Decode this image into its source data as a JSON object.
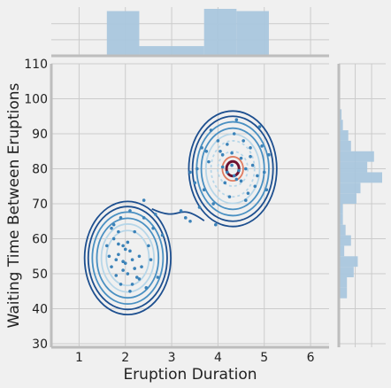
{
  "chart_data": {
    "type": "scatter",
    "xlabel": "Eruption Duration",
    "ylabel": "Waiting Time Between Eruptions",
    "xlim": [
      0.4,
      6.4
    ],
    "ylim": [
      29,
      110
    ],
    "xticks": [
      "1",
      "2",
      "3",
      "4",
      "5",
      "6"
    ],
    "yticks": [
      "30",
      "40",
      "50",
      "60",
      "70",
      "80",
      "90",
      "100",
      "110"
    ],
    "grid": true,
    "colors": {
      "background": "#f0f0f0",
      "grid": "#cbcbcb",
      "spine": "#bdbdbd",
      "points": "#3b82b8",
      "hist": "#a9c6dd",
      "contour_outer": "#1d4f8f",
      "contour_mid": "#4a90c2",
      "contour_inner": "#b7d6e8",
      "contour_hot": "#e07b5f",
      "contour_core": "#6e1230"
    },
    "kde_components": [
      {
        "mx": 2.05,
        "my": 54.5,
        "sx": 0.42,
        "sy": 6.4
      },
      {
        "mx": 4.32,
        "my": 80.0,
        "sx": 0.46,
        "sy": 6.3
      }
    ],
    "kde_levels": [
      {
        "x_radius": 0.95,
        "y_radius": 16.5
      },
      {
        "x_radius": 0.87,
        "y_radius": 15.0
      },
      {
        "x_radius": 0.78,
        "y_radius": 13.4
      },
      {
        "x_radius": 0.68,
        "y_radius": 11.6
      },
      {
        "x_radius": 0.58,
        "y_radius": 9.9
      },
      {
        "x_radius": 0.47,
        "y_radius": 8.0
      },
      {
        "x_radius": 0.36,
        "y_radius": 6.2
      },
      {
        "x_radius": 0.25,
        "y_radius": 4.3
      },
      {
        "x_radius": 0.15,
        "y_radius": 2.6
      }
    ],
    "points": [
      [
        1.8,
        54.0
      ],
      [
        1.95,
        58.0
      ],
      [
        2.05,
        50.0
      ],
      [
        2.15,
        47.0
      ],
      [
        1.7,
        52.0
      ],
      [
        2.3,
        55.0
      ],
      [
        2.1,
        56.5
      ],
      [
        1.9,
        47.0
      ],
      [
        1.75,
        60.0
      ],
      [
        2.4,
        66.0
      ],
      [
        1.85,
        62.0
      ],
      [
        2.2,
        51.5
      ],
      [
        1.65,
        55.0
      ],
      [
        2.0,
        53.0
      ],
      [
        2.5,
        58.0
      ],
      [
        2.25,
        49.0
      ],
      [
        1.95,
        51.0
      ],
      [
        2.1,
        45.0
      ],
      [
        2.35,
        52.0
      ],
      [
        1.6,
        58.0
      ],
      [
        1.75,
        64.0
      ],
      [
        2.6,
        63.0
      ],
      [
        2.8,
        61.0
      ],
      [
        2.7,
        49.0
      ],
      [
        1.85,
        55.5
      ],
      [
        2.05,
        59.0
      ],
      [
        2.2,
        62.0
      ],
      [
        1.9,
        66.0
      ],
      [
        2.45,
        46.0
      ],
      [
        2.0,
        57.0
      ],
      [
        1.95,
        53.5
      ],
      [
        2.15,
        54.0
      ],
      [
        1.8,
        49.5
      ],
      [
        2.3,
        48.5
      ],
      [
        1.7,
        63.0
      ],
      [
        2.55,
        54.0
      ],
      [
        2.4,
        71.0
      ],
      [
        2.65,
        67.0
      ],
      [
        2.1,
        68.0
      ],
      [
        1.85,
        58.5
      ],
      [
        3.5,
        76.0
      ],
      [
        3.4,
        79.0
      ],
      [
        3.8,
        82.0
      ],
      [
        4.0,
        88.0
      ],
      [
        4.1,
        84.0
      ],
      [
        4.2,
        79.0
      ],
      [
        4.3,
        81.0
      ],
      [
        4.4,
        77.0
      ],
      [
        4.5,
        83.0
      ],
      [
        4.6,
        80.0
      ],
      [
        4.7,
        86.0
      ],
      [
        4.8,
        75.0
      ],
      [
        4.9,
        92.0
      ],
      [
        5.0,
        79.0
      ],
      [
        5.1,
        84.0
      ],
      [
        4.25,
        72.0
      ],
      [
        4.35,
        90.0
      ],
      [
        3.9,
        70.0
      ],
      [
        3.7,
        74.0
      ],
      [
        3.6,
        69.0
      ],
      [
        3.3,
        66.0
      ],
      [
        3.2,
        68.0
      ],
      [
        3.4,
        65.0
      ],
      [
        3.95,
        64.0
      ],
      [
        4.45,
        79.5
      ],
      [
        4.15,
        76.0
      ],
      [
        4.55,
        88.0
      ],
      [
        4.65,
        73.0
      ],
      [
        4.05,
        85.0
      ],
      [
        4.75,
        81.0
      ],
      [
        4.85,
        78.0
      ],
      [
        3.85,
        91.0
      ],
      [
        4.4,
        94.0
      ],
      [
        5.05,
        74.0
      ],
      [
        4.2,
        87.0
      ],
      [
        3.75,
        85.0
      ],
      [
        4.3,
        84.5
      ],
      [
        4.5,
        76.5
      ],
      [
        4.1,
        80.5
      ],
      [
        4.6,
        71.0
      ],
      [
        3.55,
        80.0
      ],
      [
        4.95,
        86.5
      ],
      [
        4.35,
        78.0
      ],
      [
        4.7,
        83.5
      ],
      [
        3.65,
        86.0
      ]
    ],
    "x_hist": {
      "bins": [
        1.6,
        2.3,
        3.0,
        3.7,
        4.4,
        5.1
      ],
      "counts": [
        60,
        13,
        13,
        63,
        60
      ]
    },
    "y_hist": {
      "bins": [
        43,
        46,
        49,
        52,
        55,
        58,
        61,
        64,
        67,
        70,
        73,
        76,
        79,
        82,
        85,
        88,
        91,
        94,
        97
      ],
      "counts": [
        6,
        6,
        11,
        14,
        4,
        9,
        5,
        3,
        3,
        13,
        16,
        32,
        21,
        26,
        9,
        7,
        3,
        2
      ]
    }
  }
}
